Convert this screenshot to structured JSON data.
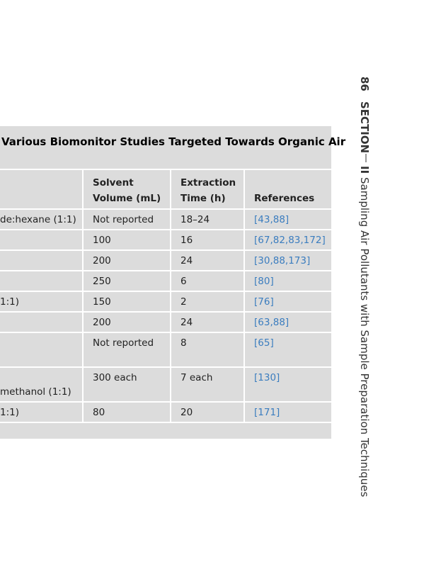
{
  "header": {
    "page_number": "86",
    "section": "SECTION",
    "section_number": "II",
    "title": "Sampling Air Pollutants with Sample Preparation Techniques"
  },
  "table": {
    "title": "Various Biomonitor Studies Targeted Towards Organic Air",
    "columns": [
      [
        "Solvent",
        "Volume (mL)"
      ],
      [
        "Extraction",
        "Time (h)"
      ],
      [
        "References"
      ]
    ],
    "rows": [
      [
        "de:hexane (1:1)",
        "Not reported",
        "18–24",
        "[43,88]"
      ],
      [
        null,
        "100",
        "16",
        "[67,82,83,172]"
      ],
      [
        null,
        "200",
        "24",
        "[30,88,173]"
      ],
      [
        null,
        "250",
        "6",
        "[80]"
      ],
      [
        "1:1)",
        "150",
        "2",
        "[76]"
      ],
      [
        null,
        "200",
        "24",
        "[63,88]"
      ],
      [
        null,
        "Not reported",
        "8",
        "[65]"
      ],
      [
        "methanol (1:1)",
        "300 each",
        "7 each",
        "[130]"
      ],
      [
        "1:1)",
        "80",
        "20",
        "[171]"
      ]
    ]
  }
}
